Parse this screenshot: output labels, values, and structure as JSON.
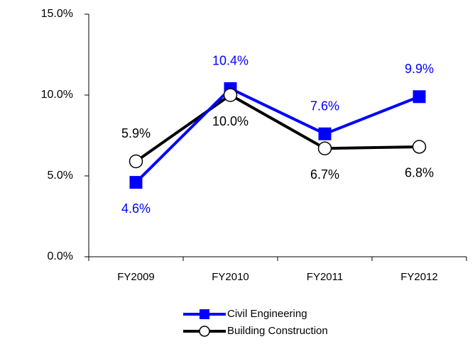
{
  "chart_data": {
    "type": "line",
    "categories": [
      "FY2009",
      "FY2010",
      "FY2011",
      "FY2012"
    ],
    "series": [
      {
        "name": "Civil Engineering",
        "color": "#0000ff",
        "marker": "square",
        "values": [
          4.6,
          10.4,
          7.6,
          9.9
        ],
        "value_labels": [
          "4.6%",
          "10.4%",
          "7.6%",
          "9.9%"
        ]
      },
      {
        "name": "Building Construction",
        "color": "#000000",
        "marker": "circle",
        "values": [
          5.9,
          10.0,
          6.7,
          6.8
        ],
        "value_labels": [
          "5.9%",
          "10.0%",
          "6.7%",
          "6.8%"
        ]
      }
    ],
    "ylim": [
      0,
      15
    ],
    "yticks": [
      {
        "value": 0,
        "label": "0.0%"
      },
      {
        "value": 5,
        "label": "5.0%"
      },
      {
        "value": 10,
        "label": "10.0%"
      },
      {
        "value": 15,
        "label": "15.0%"
      }
    ],
    "grid": false,
    "legend": "bottom"
  }
}
